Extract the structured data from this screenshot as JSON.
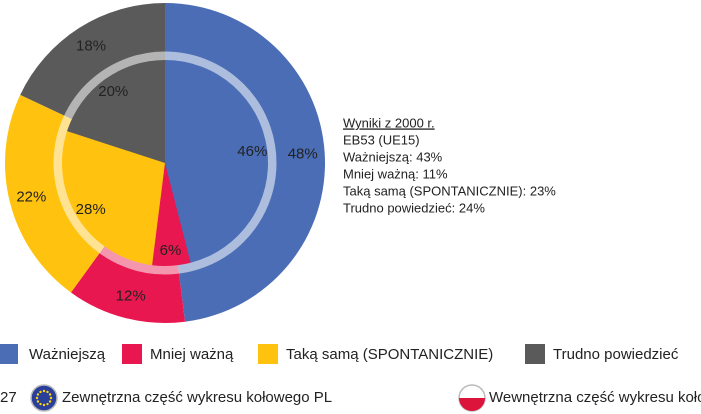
{
  "chart_data": {
    "type": "pie",
    "categories": [
      "Ważniejszą",
      "Mniej ważną",
      "Taką samą (SPONTANICZNIE)",
      "Trudno powiedzieć"
    ],
    "colors": [
      "#4a6db5",
      "#e8174f",
      "#ffc20e",
      "#5a5a5a"
    ],
    "series": [
      {
        "name": "Zewnętrzna część wykresu kołowego PL",
        "values": [
          48,
          12,
          22,
          18
        ],
        "value_labels": [
          "48%",
          "12%",
          "22%",
          "18%"
        ]
      },
      {
        "name": "Wewnętrzna część wykresu kołowego",
        "values": [
          46,
          6,
          28,
          20
        ],
        "value_labels": [
          "46%",
          "6%",
          "28%",
          "20%"
        ]
      }
    ],
    "footnote_prefix": "27",
    "annotation": {
      "title": "Wyniki z 2000 r.",
      "lines": [
        "EB53 (UE15)",
        "Ważniejszą: 43%",
        "Mniej ważną: 11%",
        "Taką samą (SPONTANICZNIE): 23%",
        "Trudno powiedzieć: 24%"
      ]
    }
  }
}
